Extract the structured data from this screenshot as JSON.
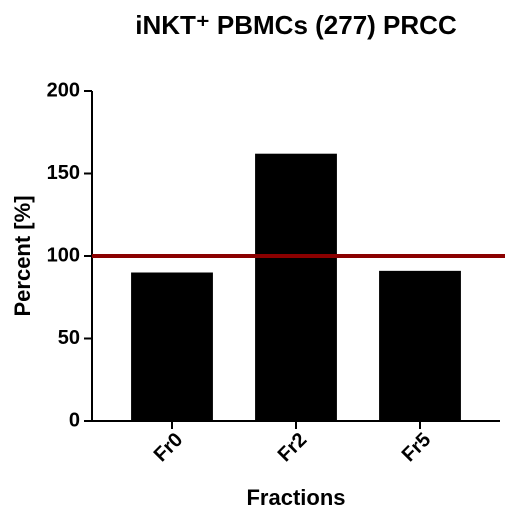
{
  "chart_data": {
    "type": "bar",
    "title": "iNKT⁺ PBMCs (277) PRCC",
    "categories": [
      "Fr0",
      "Fr2",
      "Fr5"
    ],
    "values": [
      90,
      162,
      91
    ],
    "color": "#000000",
    "xlabel": "Fractions",
    "ylabel": "Percent [%]",
    "ylim": [
      0,
      200
    ],
    "yticks": [
      0,
      50,
      100,
      150,
      200
    ],
    "reference_line": {
      "value": 100,
      "color": "#8b0000"
    }
  }
}
